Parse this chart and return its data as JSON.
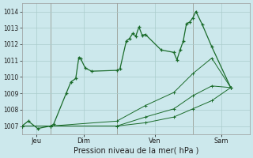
{
  "background_color": "#cce8ec",
  "grid_color": "#aacccc",
  "line_color": "#1a6b2a",
  "xlabel": "Pression niveau de la mer( hPa )",
  "ylim": [
    1006.5,
    1014.5
  ],
  "yticks": [
    1007,
    1008,
    1009,
    1010,
    1011,
    1012,
    1013,
    1014
  ],
  "xlim": [
    0,
    72
  ],
  "vlines": [
    9,
    30,
    54
  ],
  "xtick_positions": [
    4.5,
    19.5,
    42,
    63
  ],
  "xtick_labels": [
    "Jeu",
    "Dim",
    "Ven",
    "Sam"
  ],
  "s1_x": [
    0,
    2,
    5,
    9,
    10,
    14,
    15.5,
    17,
    18,
    18.5,
    20,
    22,
    30,
    31,
    33,
    34,
    35,
    36,
    37,
    38,
    39,
    44,
    48,
    49,
    50,
    51,
    52,
    53,
    54,
    55,
    57,
    60,
    66
  ],
  "s1_y": [
    1007.0,
    1007.3,
    1006.85,
    1007.0,
    1007.1,
    1009.0,
    1009.7,
    1009.9,
    1011.2,
    1011.15,
    1010.55,
    1010.35,
    1010.4,
    1010.5,
    1012.2,
    1012.35,
    1012.65,
    1012.5,
    1013.05,
    1012.55,
    1012.6,
    1011.65,
    1011.5,
    1011.05,
    1011.65,
    1012.2,
    1013.25,
    1013.35,
    1013.6,
    1014.0,
    1013.2,
    1011.85,
    1009.35
  ],
  "s2_x": [
    0,
    9,
    30,
    39,
    48,
    54,
    60,
    66
  ],
  "s2_y": [
    1007.0,
    1007.0,
    1007.3,
    1008.25,
    1009.05,
    1010.2,
    1011.15,
    1009.35
  ],
  "s3_x": [
    0,
    9,
    30,
    39,
    48,
    54,
    60,
    66
  ],
  "s3_y": [
    1007.0,
    1007.0,
    1007.0,
    1007.55,
    1008.05,
    1008.85,
    1009.45,
    1009.35
  ],
  "s4_x": [
    0,
    9,
    30,
    39,
    48,
    54,
    60,
    66
  ],
  "s4_y": [
    1007.0,
    1007.0,
    1007.0,
    1007.2,
    1007.55,
    1008.05,
    1008.55,
    1009.35
  ]
}
